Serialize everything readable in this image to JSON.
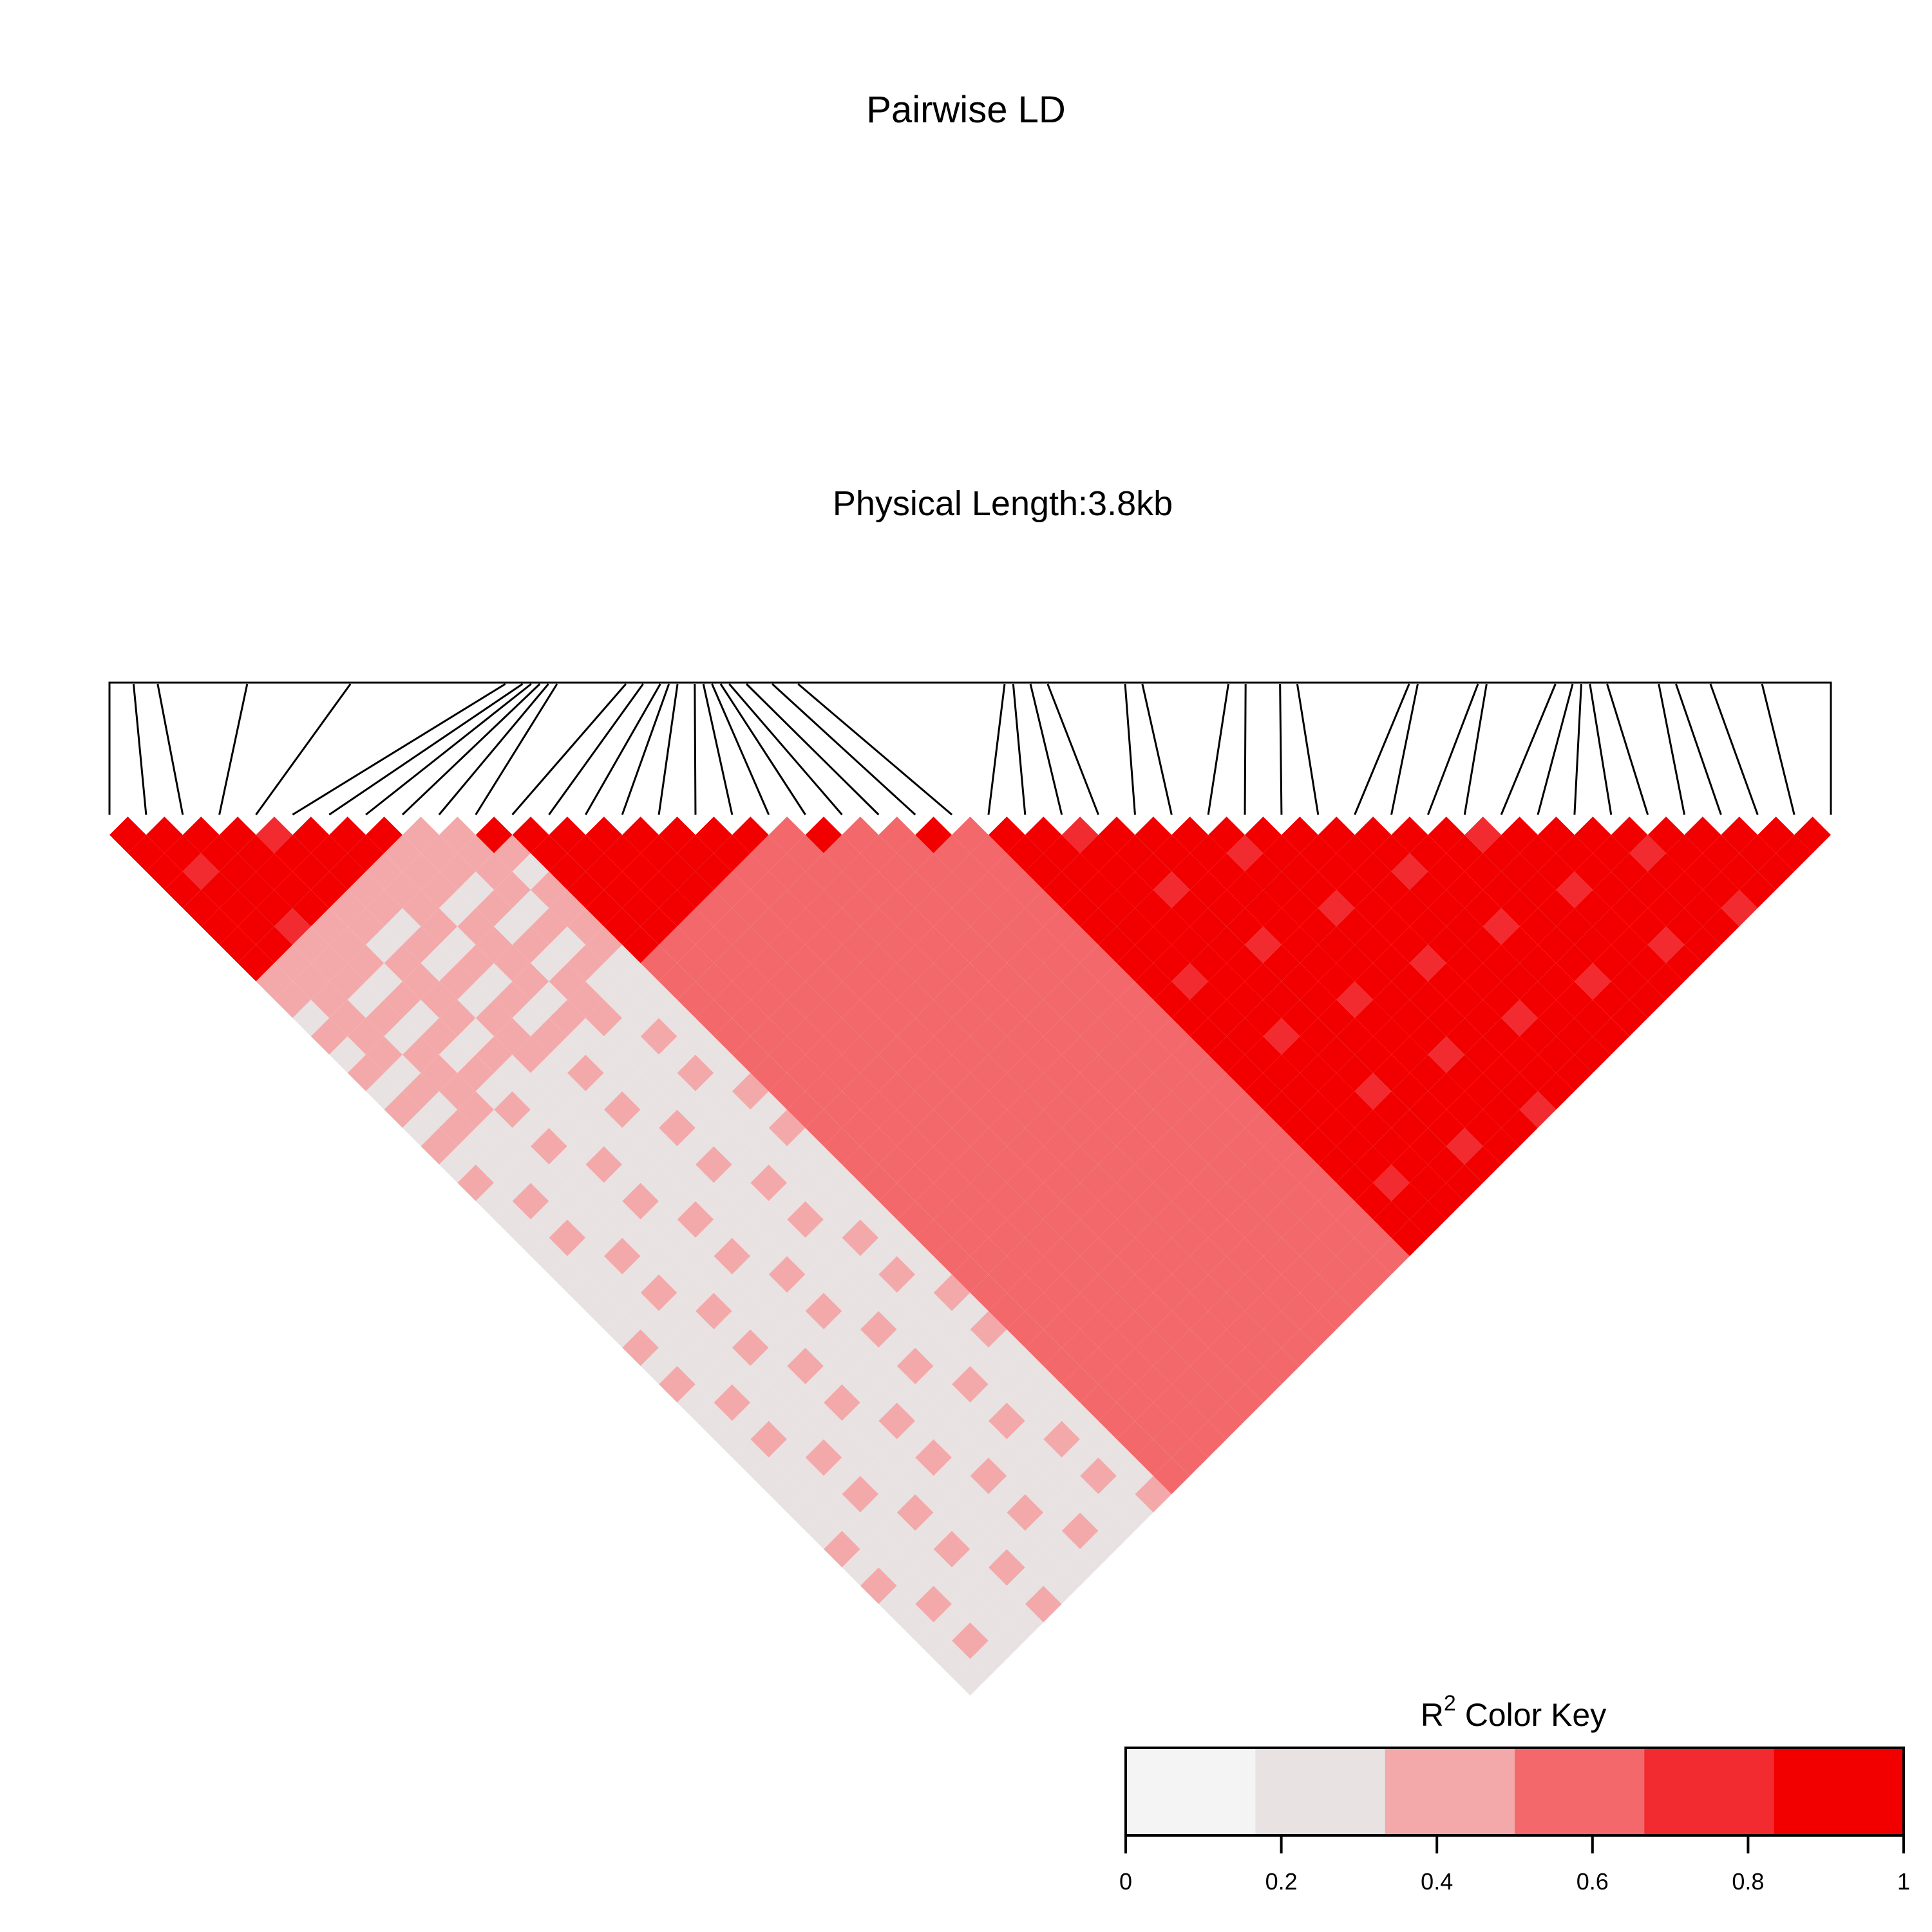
{
  "chart_data": {
    "type": "heatmap",
    "title": "Pairwise LD",
    "subtitle": "Physical Length:3.8kb",
    "n_markers": 48,
    "blocks": [
      [
        0,
        8,
        0.88
      ],
      [
        10,
        11,
        0.9
      ],
      [
        11,
        18,
        0.93
      ],
      [
        19,
        20,
        0.85
      ],
      [
        22,
        23,
        0.95
      ],
      [
        24,
        47,
        0.9
      ],
      [
        0,
        10,
        0.4
      ],
      [
        0,
        18,
        0.35
      ],
      [
        11,
        24,
        0.6
      ],
      [
        11,
        47,
        0.55
      ],
      [
        25,
        47,
        0.88
      ]
    ],
    "color_key": {
      "title_base": "R",
      "title_sup": "2",
      "title_rest": " Color Key",
      "bins": [
        "#f4f4f4",
        "#e8e2e2",
        "#f3a9aa",
        "#f2686b",
        "#f12b30",
        "#f20000"
      ],
      "ticks": [
        "0",
        "0.2",
        "0.4",
        "0.6",
        "0.8",
        "1"
      ],
      "tick_values": [
        0,
        0.2,
        0.4,
        0.6,
        0.8,
        1
      ]
    }
  }
}
